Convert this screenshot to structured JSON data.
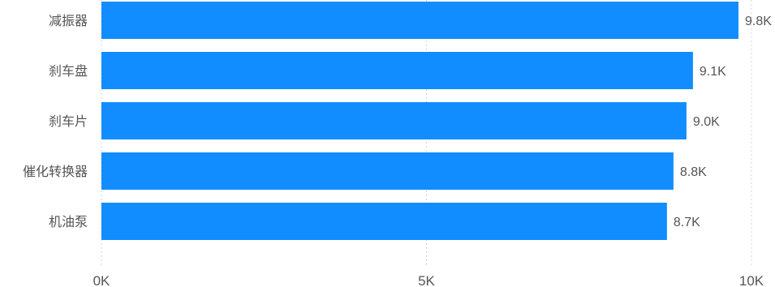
{
  "chart_data": {
    "type": "bar",
    "orientation": "horizontal",
    "categories": [
      "减振器",
      "刹车盘",
      "刹车片",
      "催化转换器",
      "机油泵"
    ],
    "values": [
      9800,
      9100,
      9000,
      8800,
      8700
    ],
    "value_labels": [
      "9.8K",
      "9.1K",
      "9.0K",
      "8.8K",
      "8.7K"
    ],
    "x_ticks": [
      {
        "value": 0,
        "label": "0K"
      },
      {
        "value": 5000,
        "label": "5K"
      },
      {
        "value": 10000,
        "label": "10K"
      }
    ],
    "xlim": [
      0,
      10000
    ],
    "bar_color": "#118dff",
    "grid": true,
    "title": "",
    "xlabel": "",
    "ylabel": ""
  }
}
